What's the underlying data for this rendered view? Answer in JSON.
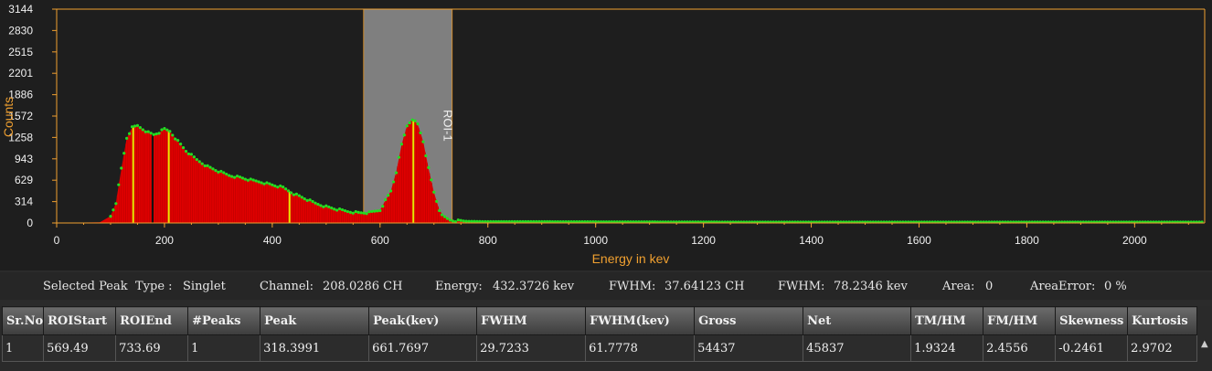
{
  "chart_data": {
    "type": "area",
    "xlabel": "Energy in kev",
    "ylabel": "Counts",
    "xlim": [
      0,
      2130
    ],
    "ylim": [
      0,
      3144
    ],
    "x_ticks": [
      0,
      200,
      400,
      600,
      800,
      1000,
      1200,
      1400,
      1600,
      1800,
      2000
    ],
    "y_ticks": [
      0,
      314,
      629,
      943,
      1258,
      1572,
      1886,
      2201,
      2515,
      2830,
      3144
    ],
    "series": [
      {
        "x": [
          0,
          80,
          100,
          110,
          120,
          130,
          140,
          150,
          160,
          170,
          180,
          190,
          200,
          210,
          220,
          240,
          260,
          280,
          300,
          320,
          340,
          360,
          380,
          400,
          420,
          440,
          460,
          480,
          500,
          520,
          540,
          560,
          580,
          600,
          620,
          630,
          640,
          650,
          660,
          670,
          680,
          690,
          700,
          710,
          720,
          730,
          740,
          760,
          800,
          900,
          1000,
          1200,
          1400,
          1600,
          1800,
          2000,
          2100,
          2130
        ],
        "y": [
          0,
          10,
          100,
          300,
          800,
          1250,
          1400,
          1430,
          1380,
          1330,
          1300,
          1330,
          1380,
          1350,
          1250,
          1060,
          930,
          830,
          760,
          700,
          670,
          630,
          600,
          560,
          520,
          430,
          360,
          290,
          240,
          200,
          170,
          150,
          150,
          190,
          470,
          750,
          1150,
          1430,
          1530,
          1450,
          1200,
          800,
          450,
          190,
          80,
          40,
          30,
          25,
          20,
          20,
          18,
          15,
          12,
          10,
          8,
          8,
          5,
          5
        ]
      }
    ],
    "roi": {
      "label": "ROI-1",
      "start": 569.49,
      "end": 733.69
    },
    "peak_markers": [
      142,
      178,
      208,
      432,
      661.77
    ],
    "grid": false
  },
  "info": {
    "selected_peak": "Selected Peak",
    "type_label": "Type :",
    "type_value": "Singlet",
    "channel_label": "Channel:",
    "channel_value": "208.0286 CH",
    "energy_label": "Energy:",
    "energy_value": "432.3726 kev",
    "fwhm_ch_label": "FWHM:",
    "fwhm_ch_value": "37.64123 CH",
    "fwhm_kev_label": "FWHM:",
    "fwhm_kev_value": "78.2346 kev",
    "area_label": "Area:",
    "area_value": "0",
    "area_error_label": "AreaError:",
    "area_error_value": "0 %"
  },
  "table": {
    "columns": [
      "Sr.No",
      "ROIStart",
      "ROIEnd",
      "#Peaks",
      "Peak",
      "Peak(kev)",
      "FWHM",
      "FWHM(kev)",
      "Gross",
      "Net",
      "TM/HM",
      "FM/HM",
      "Skewness",
      "Kurtosis"
    ],
    "rows": [
      [
        "1",
        "569.49",
        "733.69",
        "1",
        "318.3991",
        "661.7697",
        "29.7233",
        "61.7778",
        "54437",
        "45837",
        "1.9324",
        "2.4556",
        "-0.2461",
        "2.9702"
      ]
    ]
  },
  "colors": {
    "axis": "#f0a030",
    "fill": "#e00000",
    "points": "#22dd22",
    "roi": "#909090",
    "marker": "#e8e800"
  }
}
